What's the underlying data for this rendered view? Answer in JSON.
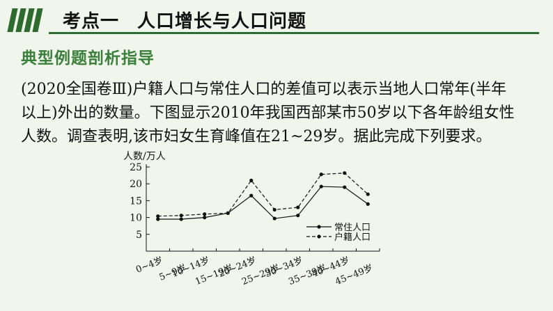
{
  "header": {
    "section": "考点一",
    "title": "人口增长与人口问题"
  },
  "subtitle": "典型例题剖析指导",
  "question": {
    "lines": [
      "(2020全国卷Ⅲ)户籍人口与常住人口的差值可以表示当地人口常年(半年",
      "以上)外出的数量。下图显示2010年我国西部某市50岁以下各年龄组女性",
      "人数。调查表明,该市妇女生育峰值在21~29岁。据此完成下列要求。"
    ]
  },
  "chart_data": {
    "type": "line",
    "ylabel": "人数/万人",
    "categories": [
      "0~4岁",
      "5~9岁",
      "10~14岁",
      "15~19岁",
      "20~24岁",
      "25~29岁",
      "30~34岁",
      "35~39岁",
      "40~44岁",
      "45~49岁"
    ],
    "yticks": [
      5,
      10,
      15,
      20,
      25
    ],
    "ylim": [
      0,
      25
    ],
    "series": [
      {
        "name": "常住人口",
        "style": "solid",
        "values": [
          9.5,
          9.5,
          10,
          11.3,
          16.5,
          9.7,
          10.6,
          19.2,
          19,
          14
        ]
      },
      {
        "name": "户籍人口",
        "style": "dashed",
        "values": [
          10.4,
          10.6,
          11,
          11.3,
          21,
          12.3,
          13,
          22.8,
          23.2,
          16.9
        ]
      }
    ],
    "legend_position": "right"
  }
}
